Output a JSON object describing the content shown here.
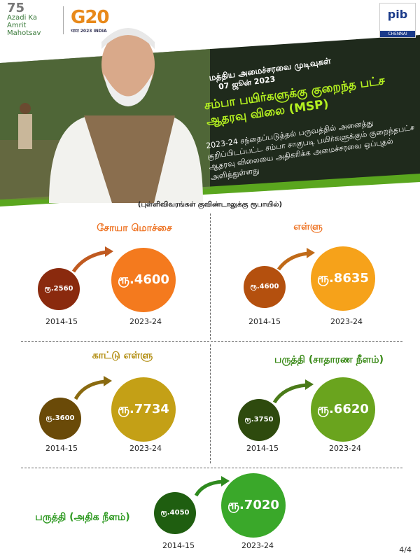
{
  "header": {
    "aka_line1": "75",
    "aka_line2": "Azadi Ka",
    "aka_line3": "Amrit Mahotsav",
    "g20": "G20",
    "g20_sub": "भारत 2023 INDIA",
    "pib": "pib",
    "pib_city": "CHENNAI"
  },
  "banner": {
    "line1": "மத்திய அமைச்சரவை முடிவுகள்",
    "date": "07 ஜூன் 2023",
    "title": "சம்பா பயிர்களுக்கு குறைந்த பட்ச ஆதரவு விலை (MSP)",
    "body": "2023-24 சந்தைப்படுத்தல் பருவத்தில் அனைத்து குறிப்பிடப்பட்ட சம்பா சாகுபடி பயிர்களுக்கும் குறைந்தபட்ச ஆதரவு விலையை அதிகரிக்க அமைச்சரவை ஒப்புதல் அளித்துள்ளது"
  },
  "unit_note": "(புள்ளிவிவரங்கள் குவிண்டாலுக்கு ரூபாயில்)",
  "crops": [
    {
      "name": "சோயா மொச்சை",
      "old": "ரூ.2560",
      "new": "ரூ.4600",
      "old_year": "2014-15",
      "new_year": "2023-24",
      "title_color": "#ee7526",
      "old_color": "#8a2a0e",
      "new_color": "#f47a1e"
    },
    {
      "name": "எள்ளு",
      "old": "ரூ.4600",
      "new": "ரூ.8635",
      "old_year": "2014-15",
      "new_year": "2023-24",
      "title_color": "#ee7526",
      "old_color": "#b4500e",
      "new_color": "#f6a21a"
    },
    {
      "name": "காட்டு எள்ளு",
      "old": "ரூ.3600",
      "new": "ரூ.7734",
      "old_year": "2014-15",
      "new_year": "2023-24",
      "title_color": "#b08a0a",
      "old_color": "#6a4a08",
      "new_color": "#c4a016"
    },
    {
      "name": "பருத்தி (சாதாரண நீளம்)",
      "old": "ரூ.3750",
      "new": "ரூ.6620",
      "old_year": "2014-15",
      "new_year": "2023-24",
      "title_color": "#3a8a18",
      "old_color": "#2e4a0e",
      "new_color": "#6aa41e"
    },
    {
      "name": "பருத்தி (அதிக நீளம்)",
      "old": "ரூ.4050",
      "new": "ரூ.7020",
      "old_year": "2014-15",
      "new_year": "2023-24",
      "title_color": "#2f9a22",
      "old_color": "#1f5e10",
      "new_color": "#3aa82a"
    }
  ],
  "page_indicator": "4/4"
}
